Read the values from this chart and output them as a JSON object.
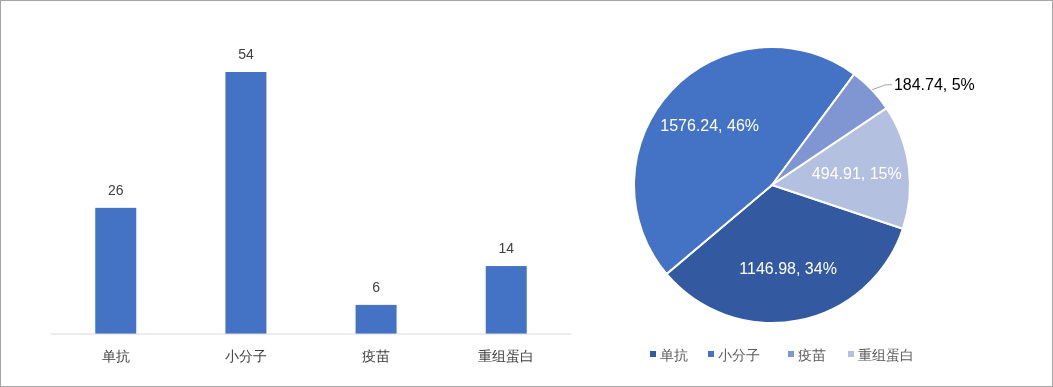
{
  "chart_data": [
    {
      "type": "bar",
      "categories": [
        "单抗",
        "小分子",
        "疫苗",
        "重组蛋白"
      ],
      "values": [
        26,
        54,
        6,
        14
      ],
      "color": "#4472c4",
      "data_labels": true
    },
    {
      "type": "pie",
      "categories": [
        "单抗",
        "小分子",
        "疫苗",
        "重组蛋白"
      ],
      "values": [
        1146.98,
        1576.24,
        184.74,
        494.91
      ],
      "colors": [
        "#335aa1",
        "#4472c4",
        "#7f96d2",
        "#b4c0e0"
      ],
      "value_labels": [
        "1146.98, 34%",
        "1576.24, 46%",
        "184.74, 5%",
        "494.91, 15%"
      ],
      "legend": "bottom"
    }
  ]
}
